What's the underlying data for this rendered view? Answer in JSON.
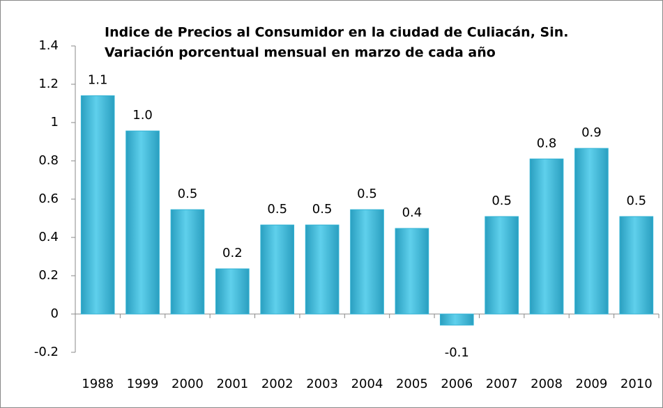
{
  "chart_data": {
    "type": "bar",
    "title": "Indice de Precios al Consumidor en la ciudad de Culiacán, Sin.",
    "subtitle": "Variación porcentual mensual en marzo de cada año",
    "categories": [
      "1988",
      "1999",
      "2000",
      "2001",
      "2002",
      "2003",
      "2004",
      "2005",
      "2006",
      "2007",
      "2008",
      "2009",
      "2010"
    ],
    "values": [
      1.14,
      0.956,
      0.545,
      0.236,
      0.465,
      0.465,
      0.545,
      0.447,
      -0.058,
      0.509,
      0.81,
      0.865,
      0.509
    ],
    "value_labels": [
      "1.1",
      "1.0",
      "0.5",
      "0.2",
      "0.5",
      "0.5",
      "0.5",
      "0.4",
      "-0.1",
      "0.5",
      "0.8",
      "0.9",
      "0.5"
    ],
    "color": "#31b2d4",
    "ylim": [
      -0.2,
      1.4
    ],
    "yticks": [
      -0.2,
      0,
      0.2,
      0.4,
      0.6,
      0.8,
      1,
      1.2,
      1.4
    ]
  }
}
